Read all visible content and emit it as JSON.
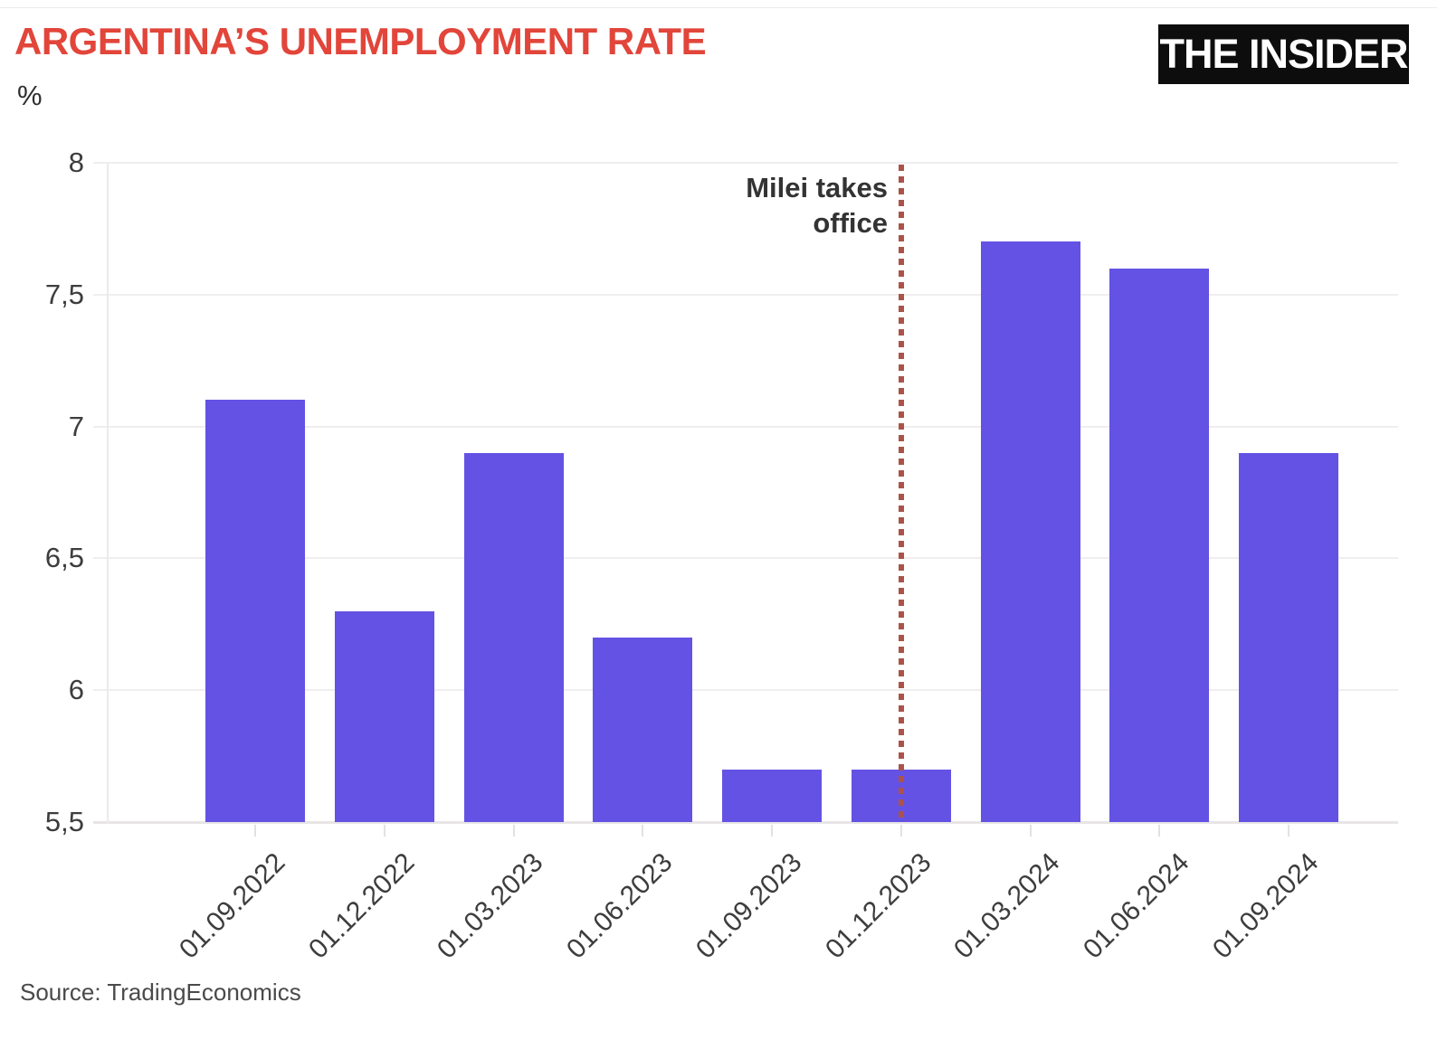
{
  "header": {
    "title": "ARGENTINA’S UNEMPLOYMENT RATE",
    "unit_label": "%",
    "logo_text": "THE INSIDER"
  },
  "annotation": {
    "text": "Milei takes\noffice"
  },
  "source": {
    "text": "Source: TradingEconomics"
  },
  "colors": {
    "title": "#e2453a",
    "bar": "#6452e4",
    "annotation_line": "#ab5349",
    "logo_bg": "#0d0d0d",
    "logo_text": "#ffffff",
    "axis_text": "#3d3d3d",
    "grid": "#f0eeee"
  },
  "chart_data": {
    "type": "bar",
    "title": "ARGENTINA’S UNEMPLOYMENT RATE",
    "xlabel": "",
    "ylabel": "%",
    "categories": [
      "01.09.2022",
      "01.12.2022",
      "01.03.2023",
      "01.06.2023",
      "01.09.2023",
      "01.12.2023",
      "01.03.2024",
      "01.06.2024",
      "01.09.2024"
    ],
    "values": [
      7.1,
      6.3,
      6.9,
      6.2,
      5.7,
      5.7,
      7.7,
      7.6,
      6.9
    ],
    "ylim": [
      5.5,
      8
    ],
    "yticks": [
      8,
      7.5,
      7,
      6.5,
      6,
      5.5
    ],
    "ytick_labels": [
      "8",
      "7,5",
      "7",
      "6,5",
      "6",
      "5,5"
    ],
    "grid": true,
    "legend": false,
    "annotation": {
      "label": "Milei takes office",
      "x_category": "01.12.2023",
      "line_style": "dotted"
    },
    "source": "Source: TradingEconomics"
  }
}
